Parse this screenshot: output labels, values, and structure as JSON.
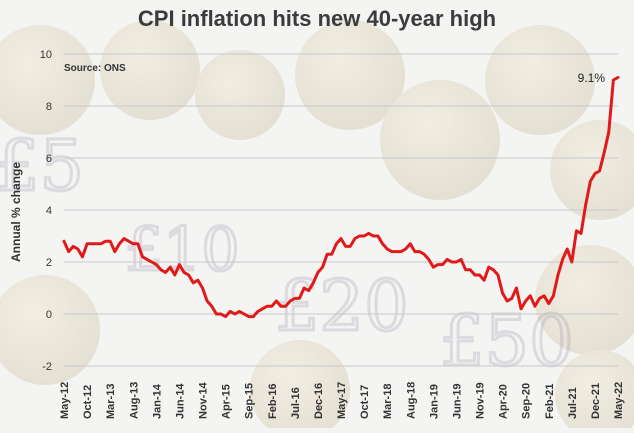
{
  "title": "CPI inflation hits new 40-year high",
  "chart_data": {
    "type": "line",
    "title": "CPI inflation hits new 40-year high",
    "source": "Source: ONS",
    "ylabel": "Annual % change",
    "xlabel": "",
    "ylim": [
      -2,
      10
    ],
    "yticks": [
      -2,
      0,
      2,
      4,
      6,
      8,
      10
    ],
    "grid": true,
    "annotation": "9.1%",
    "line_color": "#e01a1a",
    "xtick_labels": [
      "May-12",
      "Oct-12",
      "Mar-13",
      "Aug-13",
      "Jan-14",
      "Jun-14",
      "Nov-14",
      "Apr-15",
      "Sep-15",
      "Feb-16",
      "Jul-16",
      "Dec-16",
      "May-17",
      "Oct-17",
      "Mar-18",
      "Aug-18",
      "Jan-19",
      "Jun-19",
      "Nov-19",
      "Apr-20",
      "Sep-20",
      "Feb-21",
      "Jul-21",
      "Dec-21",
      "May-22"
    ],
    "x": [
      "May-12",
      "Jun-12",
      "Jul-12",
      "Aug-12",
      "Sep-12",
      "Oct-12",
      "Nov-12",
      "Dec-12",
      "Jan-13",
      "Feb-13",
      "Mar-13",
      "Apr-13",
      "May-13",
      "Jun-13",
      "Jul-13",
      "Aug-13",
      "Sep-13",
      "Oct-13",
      "Nov-13",
      "Dec-13",
      "Jan-14",
      "Feb-14",
      "Mar-14",
      "Apr-14",
      "May-14",
      "Jun-14",
      "Jul-14",
      "Aug-14",
      "Sep-14",
      "Oct-14",
      "Nov-14",
      "Dec-14",
      "Jan-15",
      "Feb-15",
      "Mar-15",
      "Apr-15",
      "May-15",
      "Jun-15",
      "Jul-15",
      "Aug-15",
      "Sep-15",
      "Oct-15",
      "Nov-15",
      "Dec-15",
      "Jan-16",
      "Feb-16",
      "Mar-16",
      "Apr-16",
      "May-16",
      "Jun-16",
      "Jul-16",
      "Aug-16",
      "Sep-16",
      "Oct-16",
      "Nov-16",
      "Dec-16",
      "Jan-17",
      "Feb-17",
      "Mar-17",
      "Apr-17",
      "May-17",
      "Jun-17",
      "Jul-17",
      "Aug-17",
      "Sep-17",
      "Oct-17",
      "Nov-17",
      "Dec-17",
      "Jan-18",
      "Feb-18",
      "Mar-18",
      "Apr-18",
      "May-18",
      "Jun-18",
      "Jul-18",
      "Aug-18",
      "Sep-18",
      "Oct-18",
      "Nov-18",
      "Dec-18",
      "Jan-19",
      "Feb-19",
      "Mar-19",
      "Apr-19",
      "May-19",
      "Jun-19",
      "Jul-19",
      "Aug-19",
      "Sep-19",
      "Oct-19",
      "Nov-19",
      "Dec-19",
      "Jan-20",
      "Feb-20",
      "Mar-20",
      "Apr-20",
      "May-20",
      "Jun-20",
      "Jul-20",
      "Aug-20",
      "Sep-20",
      "Oct-20",
      "Nov-20",
      "Dec-20",
      "Jan-21",
      "Feb-21",
      "Mar-21",
      "Apr-21",
      "May-21",
      "Jun-21",
      "Jul-21",
      "Aug-21",
      "Sep-21",
      "Oct-21",
      "Nov-21",
      "Dec-21",
      "Jan-22",
      "Feb-22",
      "Mar-22",
      "Apr-22",
      "May-22"
    ],
    "values": [
      2.8,
      2.4,
      2.6,
      2.5,
      2.2,
      2.7,
      2.7,
      2.7,
      2.7,
      2.8,
      2.8,
      2.4,
      2.7,
      2.9,
      2.8,
      2.7,
      2.7,
      2.2,
      2.1,
      2.0,
      1.9,
      1.7,
      1.6,
      1.8,
      1.5,
      1.9,
      1.6,
      1.5,
      1.2,
      1.3,
      1.0,
      0.5,
      0.3,
      0.0,
      0.0,
      -0.1,
      0.1,
      0.0,
      0.1,
      0.0,
      -0.1,
      -0.1,
      0.1,
      0.2,
      0.3,
      0.3,
      0.5,
      0.3,
      0.3,
      0.5,
      0.6,
      0.6,
      1.0,
      0.9,
      1.2,
      1.6,
      1.8,
      2.3,
      2.3,
      2.7,
      2.9,
      2.6,
      2.6,
      2.9,
      3.0,
      3.0,
      3.1,
      3.0,
      3.0,
      2.7,
      2.5,
      2.4,
      2.4,
      2.4,
      2.5,
      2.7,
      2.4,
      2.4,
      2.3,
      2.1,
      1.8,
      1.9,
      1.9,
      2.1,
      2.0,
      2.0,
      2.1,
      1.7,
      1.7,
      1.5,
      1.5,
      1.3,
      1.8,
      1.7,
      1.5,
      0.8,
      0.5,
      0.6,
      1.0,
      0.2,
      0.5,
      0.7,
      0.3,
      0.6,
      0.7,
      0.4,
      0.7,
      1.5,
      2.1,
      2.5,
      2.0,
      3.2,
      3.1,
      4.2,
      5.1,
      5.4,
      5.5,
      6.2,
      7.0,
      9.0,
      9.1
    ]
  }
}
